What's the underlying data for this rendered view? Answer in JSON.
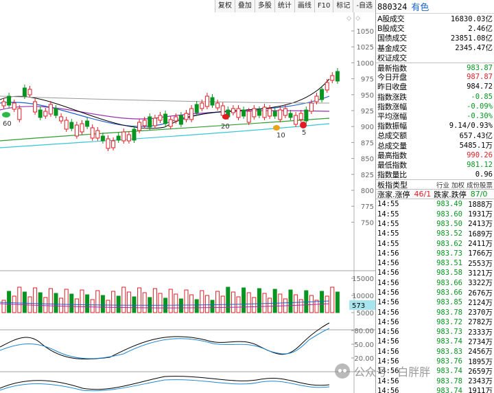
{
  "toolbar": {
    "buttons": [
      "复权",
      "叠加",
      "多股",
      "统计",
      "画线",
      "F10",
      "标记",
      "-自选"
    ]
  },
  "chart": {
    "price_axis": [
      "1050",
      "1025",
      "1000",
      "975",
      "950",
      "925",
      "900",
      "875",
      "850",
      "825",
      "800",
      "775",
      "750"
    ],
    "volume_axis": [
      "15000",
      "10000",
      "5000"
    ],
    "volume_tag": "573",
    "kdj_axis": [
      "80.00",
      "50.00",
      "20.00"
    ],
    "markers": {
      "m60": "60",
      "m20": "20",
      "m10": "10",
      "m5": "5"
    }
  },
  "panel": {
    "code": "880324",
    "name": "有色",
    "stats": [
      {
        "label": "A股成交",
        "value": "16830.03亿",
        "color": "blk"
      },
      {
        "label": "B股成交",
        "value": "2.46亿",
        "color": "blk"
      },
      {
        "label": "国债成交",
        "value": "23851.08亿",
        "color": "blk"
      },
      {
        "label": "基金成交",
        "value": "2345.47亿",
        "color": "blk"
      },
      {
        "label": "权证成交",
        "value": "",
        "color": "blk"
      },
      {
        "label": "最新指数",
        "value": "983.87",
        "color": "green"
      },
      {
        "label": "今日开盘",
        "value": "987.87",
        "color": "red"
      },
      {
        "label": "昨日收盘",
        "value": "984.72",
        "color": "blk"
      },
      {
        "label": "指数涨跌",
        "value": "-0.85",
        "color": "green"
      },
      {
        "label": "指数涨幅",
        "value": "-0.09%",
        "color": "green"
      },
      {
        "label": "平均涨幅",
        "value": "-0.30%",
        "color": "green"
      },
      {
        "label": "指数振幅",
        "value": "9.14/0.93%",
        "color": "blk"
      },
      {
        "label": "总成交额",
        "value": "657.43亿",
        "color": "blk"
      },
      {
        "label": "总成交量",
        "value": "5485.1万",
        "color": "blk"
      },
      {
        "label": "最高指数",
        "value": "990.26",
        "color": "red"
      },
      {
        "label": "最低指数",
        "value": "981.12",
        "color": "green"
      },
      {
        "label": "指数量比",
        "value": "0.96",
        "color": "blk"
      }
    ],
    "type_label": "板指类型",
    "type_options": "行业 加权 成份股票",
    "updown": {
      "up_label": "涨家.涨停",
      "up_value": "46/1",
      "down_label": "跌家.跌停",
      "down_value": "87/0"
    },
    "ticks": [
      {
        "time": "14:55",
        "price": "983.49",
        "vol": "1888万"
      },
      {
        "time": "14:55",
        "price": "983.60",
        "vol": "1931万"
      },
      {
        "time": "14:55",
        "price": "983.50",
        "vol": "2413万"
      },
      {
        "time": "14:55",
        "price": "983.52",
        "vol": "1689万"
      },
      {
        "time": "14:55",
        "price": "983.62",
        "vol": "2411万"
      },
      {
        "time": "14:56",
        "price": "983.73",
        "vol": "1766万"
      },
      {
        "time": "14:56",
        "price": "983.51",
        "vol": "2553万"
      },
      {
        "time": "14:56",
        "price": "983.58",
        "vol": "3121万"
      },
      {
        "time": "14:56",
        "price": "983.66",
        "vol": "3322万"
      },
      {
        "time": "14:56",
        "price": "983.66",
        "vol": "2676万"
      },
      {
        "time": "14:56",
        "price": "983.85",
        "vol": "2124万"
      },
      {
        "time": "14:56",
        "price": "983.78",
        "vol": "2370万"
      },
      {
        "time": "14:56",
        "price": "983.72",
        "vol": "2782万"
      },
      {
        "time": "14:56",
        "price": "983.73",
        "vol": "2333万"
      },
      {
        "time": "14:56",
        "price": "983.74",
        "vol": "2734万"
      },
      {
        "time": "14:56",
        "price": "983.83",
        "vol": "2456万"
      },
      {
        "time": "14:56",
        "price": "983.76",
        "vol": "1895万"
      },
      {
        "time": "14:56",
        "price": "983.74",
        "vol": "2659万"
      },
      {
        "time": "14:56",
        "price": "983.78",
        "vol": "2343万"
      },
      {
        "time": "14:56",
        "price": "983.74",
        "vol": "1911万"
      },
      {
        "time": "14:56",
        "price": "983.84",
        "vol": "2063万"
      }
    ]
  },
  "watermark": {
    "text": "公众号 · 白胖胖"
  },
  "colors": {
    "up": "#e21b23",
    "down": "#089420",
    "accent": "#1a63c9"
  }
}
